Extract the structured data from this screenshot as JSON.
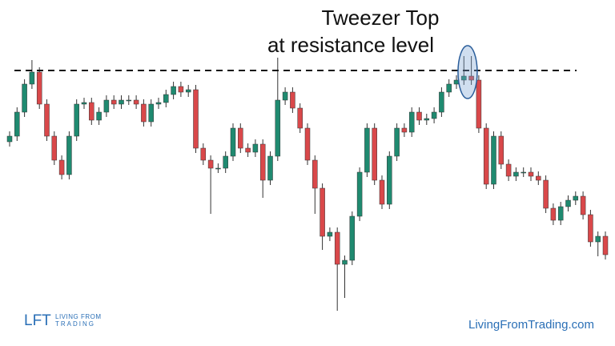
{
  "chart_data": {
    "type": "candlestick",
    "annotation": [
      "Tweezer Top",
      "at resistance level"
    ],
    "up_color": "#1f8a70",
    "down_color": "#d9484a",
    "ylim": [
      0,
      432
    ],
    "resistance_level": 344,
    "open": [
      255,
      262,
      292,
      327,
      342,
      302,
      262,
      232,
      214,
      262,
      302,
      304,
      282,
      292,
      307,
      302,
      307,
      307,
      302,
      280,
      302,
      304,
      314,
      324,
      317,
      320,
      247,
      232,
      222,
      222,
      237,
      272,
      247,
      242,
      252,
      207,
      237,
      307,
      317,
      297,
      272,
      232,
      197,
      137,
      142,
      102,
      107,
      162,
      217,
      272,
      207,
      177,
      237,
      272,
      267,
      292,
      282,
      284,
      292,
      317,
      327,
      332,
      337,
      332,
      272,
      202,
      262,
      227,
      212,
      217,
      217,
      212,
      207,
      172,
      157,
      174,
      182,
      187,
      164,
      130,
      137
    ],
    "high": [
      268,
      298,
      333,
      357,
      348,
      308,
      268,
      238,
      268,
      308,
      310,
      310,
      298,
      313,
      313,
      313,
      313,
      313,
      308,
      308,
      310,
      320,
      330,
      330,
      326,
      326,
      253,
      238,
      228,
      243,
      278,
      278,
      253,
      258,
      258,
      243,
      360,
      323,
      323,
      303,
      278,
      238,
      203,
      148,
      148,
      113,
      168,
      223,
      278,
      278,
      213,
      243,
      278,
      278,
      298,
      298,
      290,
      298,
      323,
      333,
      338,
      362,
      362,
      338,
      278,
      268,
      268,
      233,
      223,
      223,
      223,
      218,
      213,
      178,
      180,
      188,
      193,
      193,
      170,
      143,
      143
    ],
    "low": [
      249,
      256,
      286,
      321,
      296,
      256,
      226,
      208,
      208,
      256,
      296,
      276,
      276,
      286,
      296,
      296,
      301,
      296,
      274,
      274,
      296,
      298,
      308,
      311,
      311,
      241,
      226,
      165,
      216,
      216,
      231,
      241,
      236,
      236,
      185,
      201,
      231,
      301,
      291,
      266,
      226,
      165,
      120,
      131,
      44,
      60,
      101,
      156,
      211,
      201,
      171,
      171,
      231,
      261,
      261,
      276,
      276,
      278,
      286,
      311,
      321,
      326,
      326,
      266,
      196,
      196,
      221,
      206,
      206,
      211,
      206,
      201,
      166,
      151,
      151,
      168,
      176,
      158,
      124,
      112,
      108
    ],
    "close": [
      262,
      292,
      327,
      342,
      302,
      262,
      232,
      214,
      262,
      302,
      304,
      282,
      292,
      307,
      302,
      307,
      307,
      302,
      280,
      302,
      304,
      314,
      324,
      317,
      320,
      247,
      232,
      222,
      222,
      237,
      272,
      247,
      242,
      252,
      207,
      237,
      307,
      317,
      297,
      272,
      232,
      197,
      137,
      142,
      102,
      107,
      162,
      217,
      272,
      207,
      177,
      237,
      272,
      267,
      292,
      282,
      284,
      292,
      317,
      327,
      332,
      337,
      332,
      272,
      202,
      262,
      227,
      212,
      217,
      217,
      212,
      207,
      172,
      157,
      174,
      182,
      187,
      164,
      130,
      137,
      114
    ]
  },
  "logo": {
    "mark": "LFT",
    "line1": "LIVING FROM",
    "line2": "TRADING"
  },
  "website": "LivingFromTrading.com"
}
